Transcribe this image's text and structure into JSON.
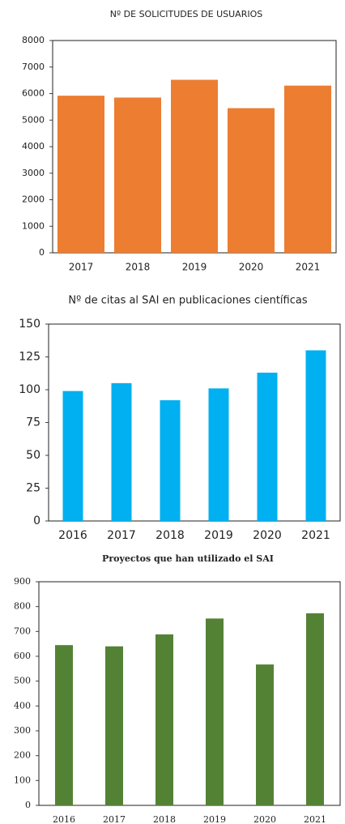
{
  "chart_data": [
    {
      "type": "bar",
      "title": "Nº DE SOLICITUDES DE USUARIOS",
      "categories": [
        "2017",
        "2018",
        "2019",
        "2020",
        "2021"
      ],
      "values": [
        5920,
        5850,
        6520,
        5450,
        6300
      ],
      "color": "#ed7d31",
      "ylim": [
        0,
        8000
      ],
      "yticks": [
        0,
        1000,
        2000,
        3000,
        4000,
        5000,
        6000,
        7000,
        8000
      ]
    },
    {
      "type": "bar",
      "title": "Nº de citas al SAI en publicaciones científicas",
      "categories": [
        "2016",
        "2017",
        "2018",
        "2019",
        "2020",
        "2021"
      ],
      "values": [
        99,
        105,
        92,
        101,
        113,
        130
      ],
      "color": "#00b0f0",
      "ylim": [
        0,
        150
      ],
      "yticks": [
        0,
        25,
        50,
        75,
        100,
        125,
        150
      ]
    },
    {
      "type": "bar",
      "title": "Proyectos que han utilizado el SAI",
      "categories": [
        "2016",
        "2017",
        "2018",
        "2019",
        "2020",
        "2021"
      ],
      "values": [
        645,
        640,
        688,
        752,
        567,
        773
      ],
      "color": "#548235",
      "ylim": [
        0,
        900
      ],
      "yticks": [
        0,
        100,
        200,
        300,
        400,
        500,
        600,
        700,
        800,
        900
      ]
    }
  ]
}
